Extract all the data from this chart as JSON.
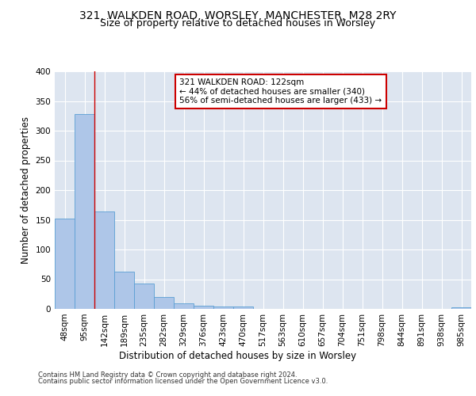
{
  "title_line1": "321, WALKDEN ROAD, WORSLEY, MANCHESTER, M28 2RY",
  "title_line2": "Size of property relative to detached houses in Worsley",
  "xlabel": "Distribution of detached houses by size in Worsley",
  "ylabel": "Number of detached properties",
  "footer_line1": "Contains HM Land Registry data © Crown copyright and database right 2024.",
  "footer_line2": "Contains public sector information licensed under the Open Government Licence v3.0.",
  "bar_labels": [
    "48sqm",
    "95sqm",
    "142sqm",
    "189sqm",
    "235sqm",
    "282sqm",
    "329sqm",
    "376sqm",
    "423sqm",
    "470sqm",
    "517sqm",
    "563sqm",
    "610sqm",
    "657sqm",
    "704sqm",
    "751sqm",
    "798sqm",
    "844sqm",
    "891sqm",
    "938sqm",
    "985sqm"
  ],
  "bar_values": [
    152,
    328,
    164,
    63,
    43,
    20,
    9,
    5,
    4,
    4,
    0,
    0,
    0,
    0,
    0,
    0,
    0,
    0,
    0,
    0,
    3
  ],
  "bar_color": "#aec6e8",
  "bar_edgecolor": "#5a9fd4",
  "background_color": "#dde5f0",
  "grid_color": "#ffffff",
  "annotation_box_text": "321 WALKDEN ROAD: 122sqm\n← 44% of detached houses are smaller (340)\n56% of semi-detached houses are larger (433) →",
  "annotation_box_color": "#ffffff",
  "annotation_box_edgecolor": "#cc0000",
  "redline_x": 1.5,
  "ylim": [
    0,
    400
  ],
  "yticks": [
    0,
    50,
    100,
    150,
    200,
    250,
    300,
    350,
    400
  ],
  "title_fontsize": 10,
  "subtitle_fontsize": 9,
  "axis_label_fontsize": 8.5,
  "tick_fontsize": 7.5,
  "annotation_fontsize": 7.5,
  "footer_fontsize": 6.0
}
